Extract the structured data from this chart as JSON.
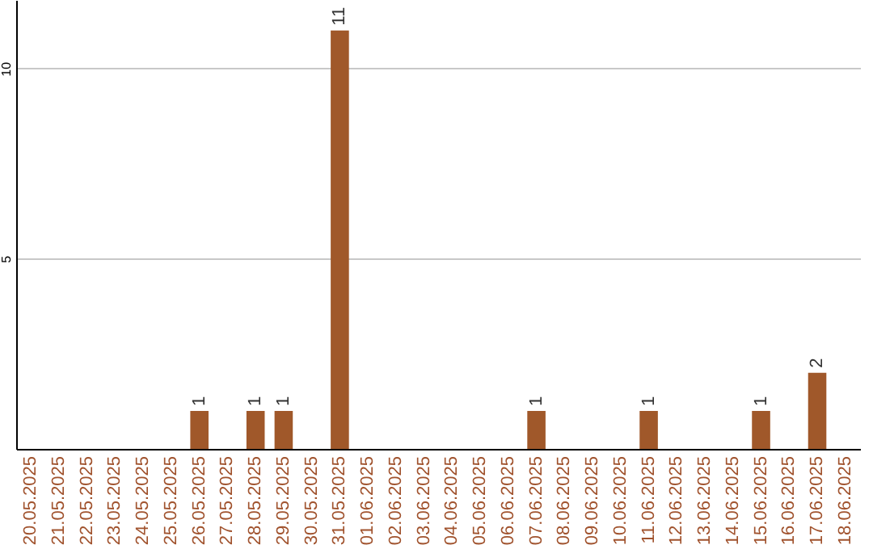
{
  "chart_data": {
    "type": "bar",
    "categories": [
      "20.05.2025",
      "21.05.2025",
      "22.05.2025",
      "23.05.2025",
      "24.05.2025",
      "25.05.2025",
      "26.05.2025",
      "27.05.2025",
      "28.05.2025",
      "29.05.2025",
      "30.05.2025",
      "31.05.2025",
      "01.06.2025",
      "02.06.2025",
      "03.06.2025",
      "04.06.2025",
      "05.06.2025",
      "06.06.2025",
      "07.06.2025",
      "08.06.2025",
      "09.06.2025",
      "10.06.2025",
      "11.06.2025",
      "12.06.2025",
      "13.06.2025",
      "14.06.2025",
      "15.06.2025",
      "16.06.2025",
      "17.06.2025",
      "18.06.2025"
    ],
    "values": [
      0,
      0,
      0,
      0,
      0,
      0,
      1,
      0,
      1,
      1,
      0,
      11,
      0,
      0,
      0,
      0,
      0,
      0,
      1,
      0,
      0,
      0,
      1,
      0,
      0,
      0,
      1,
      0,
      2,
      0
    ],
    "value_labels": [
      null,
      null,
      null,
      null,
      null,
      null,
      "1",
      null,
      "1",
      "1",
      null,
      "11",
      null,
      null,
      null,
      null,
      null,
      null,
      "1",
      null,
      null,
      null,
      "1",
      null,
      null,
      null,
      "1",
      null,
      "2",
      null
    ],
    "color": "#a0582a",
    "ylim": [
      0,
      11.8
    ],
    "yticks": [
      5,
      10
    ],
    "grid": "y"
  }
}
